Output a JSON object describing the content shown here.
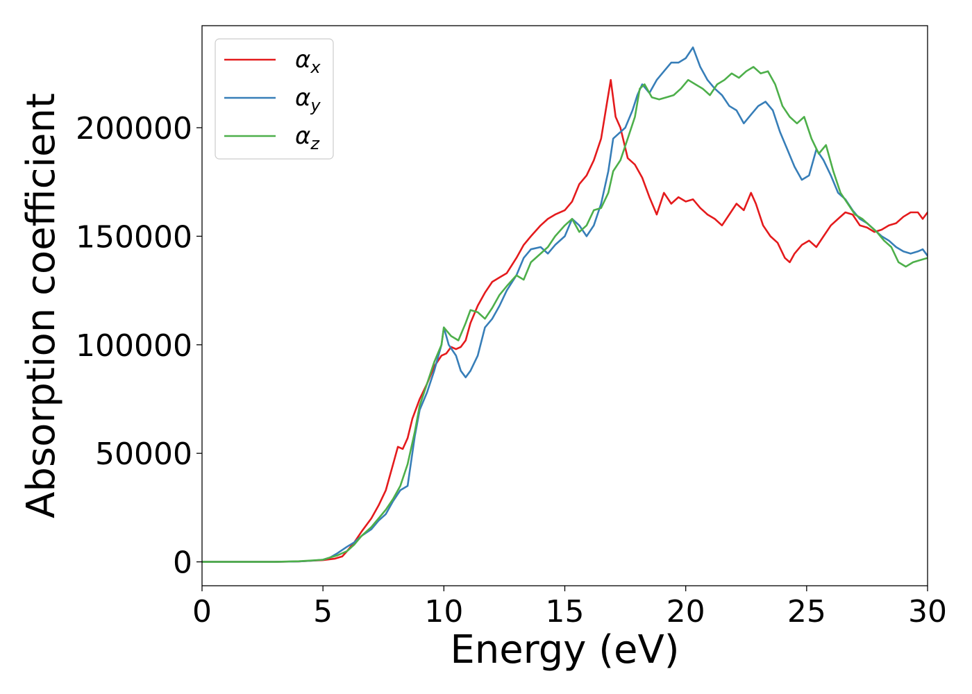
{
  "chart_data": {
    "type": "line",
    "title": "",
    "xlabel": "Energy (eV)",
    "ylabel": "Absorption coefficient",
    "xlim": [
      0,
      30
    ],
    "ylim": [
      -11000,
      247000
    ],
    "xticks": [
      0,
      5,
      10,
      15,
      20,
      25,
      30
    ],
    "xtick_labels": [
      "0",
      "5",
      "10",
      "15",
      "20",
      "25",
      "30"
    ],
    "yticks": [
      0,
      50000,
      100000,
      150000,
      200000
    ],
    "ytick_labels": [
      "0",
      "50000",
      "100000",
      "150000",
      "200000"
    ],
    "grid": false,
    "legend_position": "top-left",
    "series": [
      {
        "name": "α_x",
        "symbol": "α",
        "subscript": "x",
        "color": "#e41a1c",
        "x": [
          0,
          1,
          2,
          3,
          4,
          4.5,
          5,
          5.5,
          5.8,
          6,
          6.3,
          6.6,
          7,
          7.3,
          7.6,
          7.9,
          8.1,
          8.3,
          8.5,
          8.7,
          9,
          9.3,
          9.6,
          9.9,
          10.1,
          10.3,
          10.5,
          10.7,
          10.9,
          11.1,
          11.4,
          11.7,
          12,
          12.3,
          12.6,
          13,
          13.3,
          13.6,
          14,
          14.3,
          14.6,
          15,
          15.3,
          15.6,
          15.9,
          16.2,
          16.5,
          16.75,
          16.9,
          17.1,
          17.3,
          17.6,
          17.9,
          18.2,
          18.5,
          18.8,
          19.1,
          19.4,
          19.7,
          20,
          20.3,
          20.6,
          20.9,
          21.2,
          21.5,
          21.8,
          22.1,
          22.4,
          22.7,
          22.9,
          23.2,
          23.5,
          23.8,
          24.1,
          24.3,
          24.5,
          24.8,
          25.1,
          25.4,
          25.7,
          26,
          26.3,
          26.6,
          26.9,
          27.2,
          27.5,
          27.8,
          28.1,
          28.4,
          28.7,
          29,
          29.3,
          29.6,
          29.8,
          30
        ],
        "y": [
          0,
          0,
          0,
          0,
          200,
          500,
          800,
          1500,
          2500,
          5000,
          9000,
          14000,
          20000,
          26000,
          33000,
          45000,
          53000,
          52000,
          57000,
          66000,
          75000,
          82000,
          90000,
          95000,
          96000,
          99000,
          98000,
          99000,
          102000,
          110000,
          118000,
          124000,
          129000,
          131000,
          133000,
          140000,
          146000,
          150000,
          155000,
          158000,
          160000,
          162000,
          166000,
          174000,
          178000,
          185000,
          195000,
          212000,
          222000,
          205000,
          200000,
          186000,
          183000,
          177000,
          168000,
          160000,
          170000,
          165000,
          168000,
          166000,
          167000,
          163000,
          160000,
          158000,
          155000,
          160000,
          165000,
          162000,
          170000,
          165000,
          155000,
          150000,
          147000,
          140000,
          138000,
          142000,
          146000,
          148000,
          145000,
          150000,
          155000,
          158000,
          161000,
          160000,
          155000,
          154000,
          152000,
          153000,
          155000,
          156000,
          159000,
          161000,
          161000,
          158000,
          161000
        ]
      },
      {
        "name": "α_y",
        "symbol": "α",
        "subscript": "y",
        "color": "#377eb8",
        "x": [
          0,
          1,
          2,
          3,
          4,
          4.5,
          5,
          5.3,
          5.6,
          6,
          6.3,
          6.6,
          7,
          7.3,
          7.6,
          7.9,
          8.2,
          8.5,
          8.8,
          9,
          9.3,
          9.6,
          9.9,
          10,
          10.2,
          10.5,
          10.7,
          10.9,
          11.1,
          11.4,
          11.7,
          12,
          12.3,
          12.6,
          13,
          13.3,
          13.6,
          14,
          14.3,
          14.6,
          15,
          15.3,
          15.6,
          15.9,
          16.2,
          16.5,
          16.8,
          17,
          17.2,
          17.5,
          17.8,
          18,
          18.2,
          18.5,
          18.8,
          19.1,
          19.4,
          19.7,
          20,
          20.3,
          20.6,
          20.9,
          21.2,
          21.5,
          21.8,
          22.1,
          22.4,
          22.7,
          23,
          23.3,
          23.6,
          23.9,
          24.2,
          24.5,
          24.8,
          25.1,
          25.4,
          25.7,
          26,
          26.3,
          26.6,
          26.9,
          27.2,
          27.5,
          27.8,
          28.1,
          28.4,
          28.7,
          29,
          29.3,
          29.6,
          29.8,
          30
        ],
        "y": [
          0,
          0,
          0,
          0,
          200,
          500,
          1000,
          2000,
          4000,
          7000,
          9000,
          12000,
          15000,
          19000,
          22000,
          28000,
          33000,
          35000,
          58000,
          70000,
          78000,
          88000,
          100000,
          108000,
          100000,
          95000,
          88000,
          85000,
          88000,
          95000,
          108000,
          112000,
          118000,
          125000,
          132000,
          140000,
          144000,
          145000,
          142000,
          146000,
          150000,
          158000,
          155000,
          150000,
          155000,
          165000,
          180000,
          195000,
          197000,
          200000,
          208000,
          215000,
          220000,
          216000,
          222000,
          226000,
          230000,
          230000,
          232000,
          237000,
          228000,
          222000,
          218000,
          215000,
          210000,
          208000,
          202000,
          206000,
          210000,
          212000,
          208000,
          198000,
          190000,
          182000,
          176000,
          178000,
          190000,
          185000,
          178000,
          170000,
          167000,
          162000,
          158000,
          156000,
          153000,
          150000,
          148000,
          145000,
          143000,
          142000,
          143000,
          144000,
          141000
        ]
      },
      {
        "name": "α_z",
        "symbol": "α",
        "subscript": "z",
        "color": "#4daf4a",
        "x": [
          0,
          1,
          2,
          3,
          4,
          4.5,
          5,
          5.3,
          5.6,
          6,
          6.3,
          6.6,
          7,
          7.3,
          7.6,
          7.9,
          8.2,
          8.5,
          8.8,
          9,
          9.3,
          9.6,
          9.9,
          10,
          10.3,
          10.6,
          10.9,
          11.1,
          11.4,
          11.7,
          12,
          12.3,
          12.6,
          13,
          13.3,
          13.6,
          14,
          14.3,
          14.6,
          15,
          15.3,
          15.6,
          15.9,
          16.2,
          16.5,
          16.8,
          17,
          17.3,
          17.6,
          17.9,
          18.1,
          18.3,
          18.6,
          18.9,
          19.2,
          19.5,
          19.8,
          20.1,
          20.4,
          20.7,
          21,
          21.3,
          21.6,
          21.9,
          22.2,
          22.5,
          22.8,
          23.1,
          23.4,
          23.7,
          24,
          24.3,
          24.6,
          24.9,
          25.2,
          25.5,
          25.8,
          26.1,
          26.4,
          26.7,
          27,
          27.3,
          27.6,
          27.9,
          28.2,
          28.5,
          28.8,
          29.1,
          29.4,
          29.7,
          30
        ],
        "y": [
          0,
          0,
          0,
          0,
          300,
          600,
          1000,
          2000,
          3000,
          5000,
          8000,
          12000,
          16000,
          20000,
          24000,
          29000,
          35000,
          45000,
          60000,
          72000,
          82000,
          92000,
          100000,
          108000,
          104000,
          102000,
          110000,
          116000,
          115000,
          112000,
          117000,
          123000,
          127000,
          132000,
          130000,
          138000,
          142000,
          145000,
          150000,
          155000,
          158000,
          152000,
          155000,
          162000,
          163000,
          170000,
          180000,
          185000,
          195000,
          205000,
          218000,
          220000,
          214000,
          213000,
          214000,
          215000,
          218000,
          222000,
          220000,
          218000,
          215000,
          220000,
          222000,
          225000,
          223000,
          226000,
          228000,
          225000,
          226000,
          220000,
          210000,
          205000,
          202000,
          205000,
          195000,
          188000,
          192000,
          180000,
          170000,
          165000,
          160000,
          158000,
          155000,
          152000,
          148000,
          145000,
          138000,
          136000,
          138000,
          139000,
          140000
        ]
      }
    ]
  }
}
